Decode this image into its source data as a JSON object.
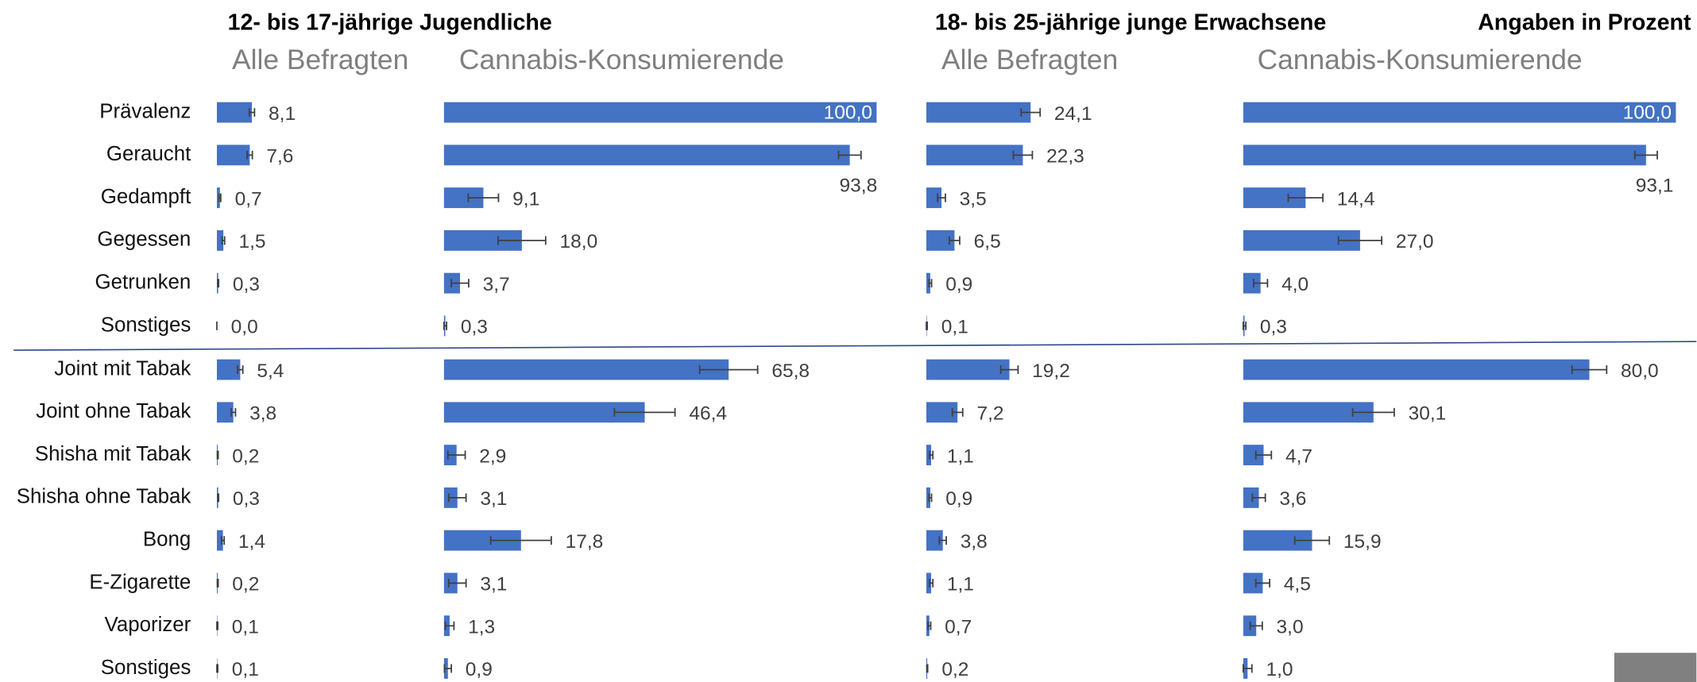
{
  "note": "Angaben in Prozent",
  "chart_data": [
    {
      "type": "bar",
      "title": "12- bis 17-jährige Jugendliche",
      "xlim": [
        0,
        100
      ],
      "categories": [
        "Prävalenz",
        "Geraucht",
        "Gedampft",
        "Gegessen",
        "Getrunken",
        "Sonstiges",
        "Joint mit Tabak",
        "Joint ohne Tabak",
        "Shisha mit Tabak",
        "Shisha ohne Tabak",
        "Bong",
        "E-Zigarette",
        "Vaporizer",
        "Sonstiges"
      ],
      "series": [
        {
          "name": "Alle Befragten",
          "color": "#4472c4",
          "values": [
            8.1,
            7.6,
            0.7,
            1.5,
            0.3,
            0.0,
            5.4,
            3.8,
            0.2,
            0.3,
            1.4,
            0.2,
            0.1,
            0.1
          ],
          "value_labels": [
            "8,1",
            "7,6",
            "0,7",
            "1,5",
            "0,3",
            "0,0",
            "5,4",
            "3,8",
            "0,2",
            "0,3",
            "1,4",
            "0,2",
            "0,1",
            "0,1"
          ],
          "errors": [
            0.6,
            0.6,
            0.2,
            0.3,
            0.1,
            0.0,
            0.6,
            0.5,
            0.1,
            0.1,
            0.3,
            0.1,
            0.1,
            0.1
          ]
        },
        {
          "name": "Cannabis-Konsumierende",
          "color": "#4472c4",
          "values": [
            100.0,
            93.8,
            9.1,
            18.0,
            3.7,
            0.3,
            65.8,
            46.4,
            2.9,
            3.1,
            17.8,
            3.1,
            1.3,
            0.9
          ],
          "value_labels": [
            "100,0",
            "93,8",
            "9,1",
            "18,0",
            "3,7",
            "0,3",
            "65,8",
            "46,4",
            "2,9",
            "3,1",
            "17,8",
            "3,1",
            "1,3",
            "0,9"
          ],
          "errors": [
            0.0,
            2.6,
            3.5,
            5.5,
            2.0,
            0.3,
            6.7,
            7.0,
            2.0,
            2.0,
            7.0,
            2.0,
            1.0,
            0.8
          ]
        }
      ]
    },
    {
      "type": "bar",
      "title": "18- bis 25-jährige junge Erwachsene",
      "xlim": [
        0,
        100
      ],
      "series": [
        {
          "name": "Alle Befragten",
          "color": "#4472c4",
          "values": [
            24.1,
            22.3,
            3.5,
            6.5,
            0.9,
            0.1,
            19.2,
            7.2,
            1.1,
            0.9,
            3.8,
            1.1,
            0.7,
            0.2
          ],
          "value_labels": [
            "24,1",
            "22,3",
            "3,5",
            "6,5",
            "0,9",
            "0,1",
            "19,2",
            "7,2",
            "1,1",
            "0,9",
            "3,8",
            "1,1",
            "0,7",
            "0,2"
          ],
          "errors": [
            2.2,
            2.2,
            0.9,
            1.2,
            0.3,
            0.1,
            2.0,
            1.2,
            0.4,
            0.3,
            0.8,
            0.4,
            0.3,
            0.1
          ]
        },
        {
          "name": "Cannabis-Konsumierende",
          "color": "#4472c4",
          "values": [
            100.0,
            93.1,
            14.4,
            27.0,
            4.0,
            0.3,
            80.0,
            30.1,
            4.7,
            3.6,
            15.9,
            4.5,
            3.0,
            1.0
          ],
          "value_labels": [
            "100,0",
            "93,1",
            "14,4",
            "27,0",
            "4,0",
            "0,3",
            "80,0",
            "30,1",
            "4,7",
            "3,6",
            "15,9",
            "4,5",
            "3,0",
            "1,0"
          ],
          "errors": [
            0.0,
            2.6,
            4.0,
            5.0,
            1.6,
            0.3,
            4.0,
            4.8,
            1.8,
            1.5,
            4.0,
            1.6,
            1.4,
            1.0
          ]
        }
      ]
    }
  ]
}
